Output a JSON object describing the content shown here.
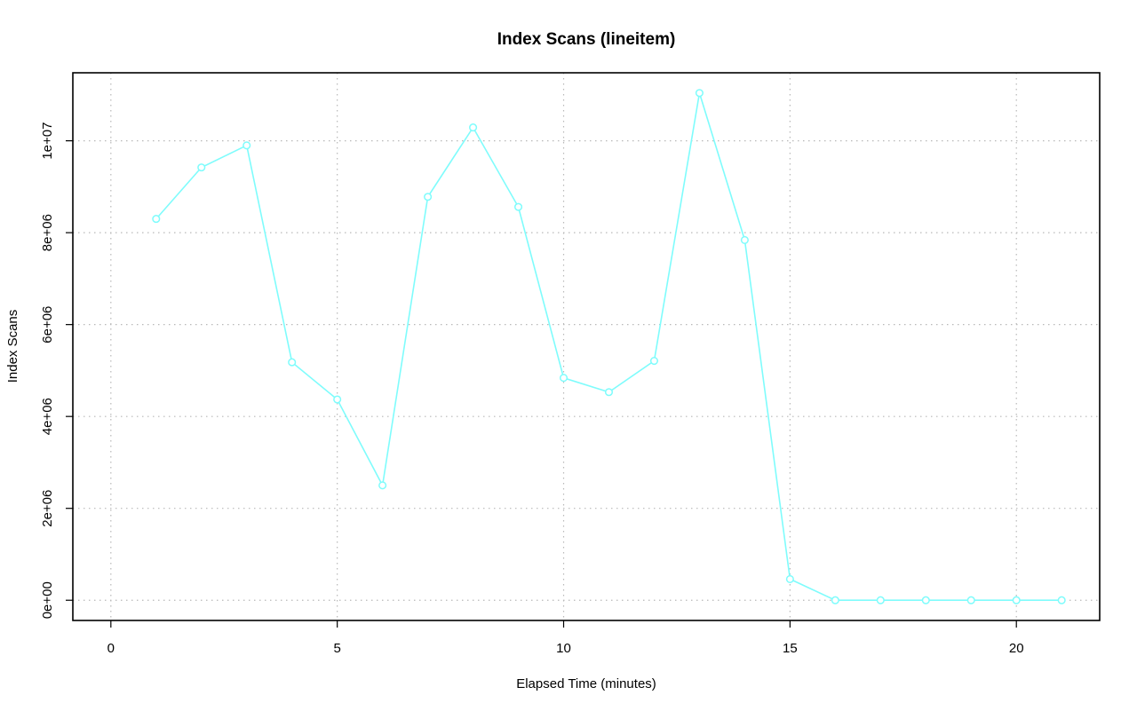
{
  "chart_data": {
    "type": "line",
    "title": "Index Scans (lineitem)",
    "xlabel": "Elapsed Time (minutes)",
    "ylabel": "Index Scans",
    "xlim": [
      -0.84,
      21.84
    ],
    "ylim": [
      -440000,
      11480000
    ],
    "x_ticks": [
      0,
      5,
      10,
      15,
      20
    ],
    "x_tick_labels": [
      "0",
      "5",
      "10",
      "15",
      "20"
    ],
    "y_ticks": [
      0,
      2000000,
      4000000,
      6000000,
      8000000,
      10000000
    ],
    "y_tick_labels": [
      "0e+00",
      "2e+06",
      "4e+06",
      "6e+06",
      "8e+06",
      "1e+07"
    ],
    "grid": true,
    "series": [
      {
        "color": "#7ffcfc",
        "marker": "open-circle",
        "x": [
          1,
          2,
          3,
          4,
          5,
          6,
          7,
          8,
          9,
          10,
          11,
          12,
          13,
          14,
          15,
          16,
          17,
          18,
          19,
          20,
          21
        ],
        "y": [
          8300000,
          9420000,
          9900000,
          5180000,
          4370000,
          2500000,
          8780000,
          10290000,
          8560000,
          4840000,
          4530000,
          5210000,
          11040000,
          7840000,
          460000,
          0,
          0,
          0,
          0,
          0,
          0
        ]
      }
    ]
  }
}
